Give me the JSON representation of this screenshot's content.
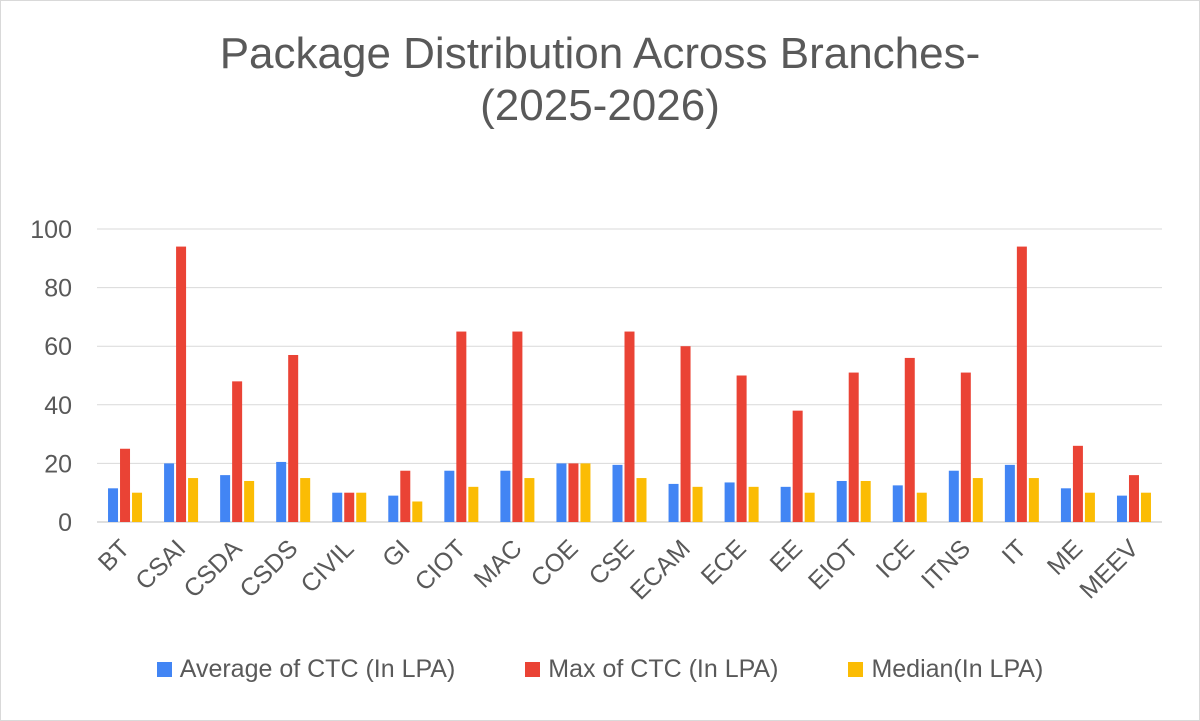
{
  "chart_data": {
    "type": "bar",
    "title": "Package Distribution Across Branches-",
    "subtitle": "(2025-2026)",
    "categories": [
      "BT",
      "CSAI",
      "CSDA",
      "CSDS",
      "CIVIL",
      "GI",
      "CIOT",
      "MAC",
      "COE",
      "CSE",
      "ECAM",
      "ECE",
      "EE",
      "EIOT",
      "ICE",
      "ITNS",
      "IT",
      "ME",
      "MEEV"
    ],
    "ylim": [
      0,
      100
    ],
    "yticks": [
      0,
      20,
      40,
      60,
      80,
      100
    ],
    "grid": true,
    "legend_position": "bottom",
    "series": [
      {
        "name": "Average of CTC (In LPA)",
        "color": "#4285f4",
        "values": [
          11.5,
          20,
          16,
          20.5,
          10,
          9,
          17.5,
          17.5,
          20,
          19.5,
          13,
          13.5,
          12,
          14,
          12.5,
          17.5,
          19.5,
          11.5,
          9
        ]
      },
      {
        "name": "Max of CTC (In LPA)",
        "color": "#ea4335",
        "values": [
          25,
          94,
          48,
          57,
          10,
          17.5,
          65,
          65,
          20,
          65,
          60,
          50,
          38,
          51,
          56,
          51,
          94,
          26,
          16
        ]
      },
      {
        "name": "Median(In LPA)",
        "color": "#fbbc04",
        "values": [
          10,
          15,
          14,
          15,
          10,
          7,
          12,
          15,
          20,
          15,
          12,
          12,
          10,
          14,
          10,
          15,
          15,
          10,
          10
        ]
      }
    ]
  }
}
